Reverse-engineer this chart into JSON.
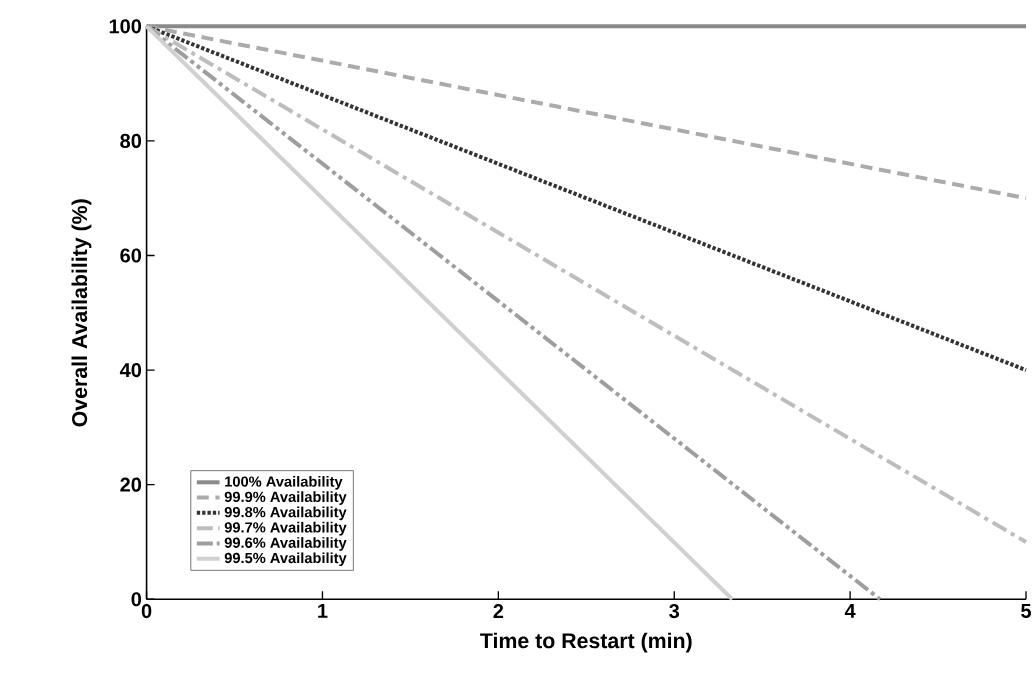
{
  "chart_data": {
    "type": "line",
    "xlabel": "Time to Restart (min)",
    "ylabel": "Overall Availability (%)",
    "xlim": [
      0,
      5
    ],
    "ylim": [
      0,
      100
    ],
    "xticks": [
      0,
      1,
      2,
      3,
      4,
      5
    ],
    "yticks": [
      0,
      20,
      40,
      60,
      80,
      100
    ],
    "grid": false,
    "legend": "bottom left",
    "marker": "none",
    "series": [
      {
        "name": "100% Availability",
        "color": "#8a8a8a",
        "line_style": "solid",
        "x": [
          0,
          5
        ],
        "values": [
          100,
          100
        ]
      },
      {
        "name": "99.9% Availability",
        "color": "#ababab",
        "line_style": "dashed",
        "x": [
          0,
          5
        ],
        "values": [
          100,
          70
        ]
      },
      {
        "name": "99.8% Availability",
        "color": "#333333",
        "line_style": "dotted",
        "x": [
          0,
          5
        ],
        "values": [
          100,
          40
        ]
      },
      {
        "name": "99.7% Availability",
        "color": "#bdbdbd",
        "line_style": "dashdot",
        "x": [
          0,
          5
        ],
        "values": [
          100,
          10
        ]
      },
      {
        "name": "99.6% Availability",
        "color": "#9e9e9e",
        "line_style": "dashdotdot",
        "x": [
          0,
          4.17
        ],
        "values": [
          100,
          0
        ]
      },
      {
        "name": "99.5% Availability",
        "color": "#d0d0d0",
        "line_style": "solid",
        "x": [
          0,
          3.33
        ],
        "values": [
          100,
          0
        ]
      }
    ]
  }
}
